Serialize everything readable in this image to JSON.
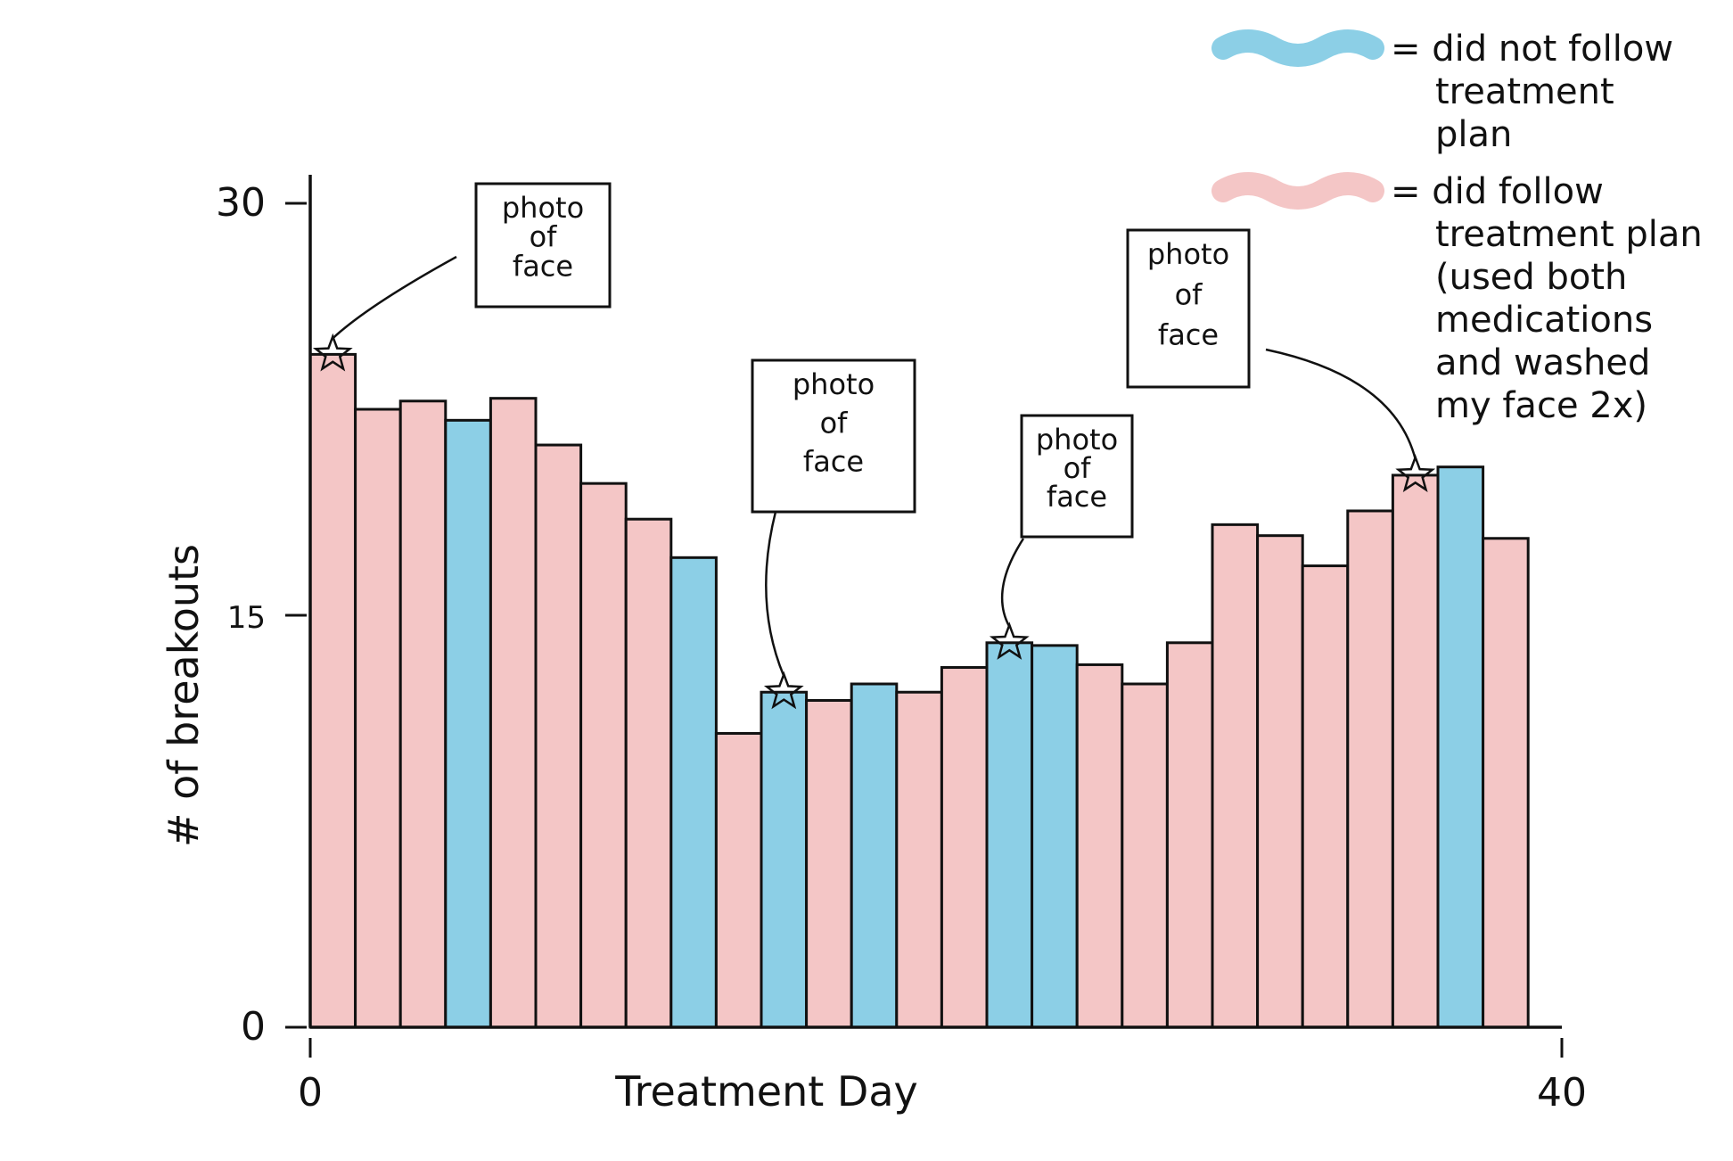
{
  "chart_data": {
    "type": "bar",
    "xlabel": "Treatment Day",
    "ylabel": "# of breakouts",
    "ylim": [
      0,
      30
    ],
    "xlim": [
      0,
      40
    ],
    "y_ticks": [
      "0",
      "15",
      "30"
    ],
    "x_ticks": [
      "0",
      "40"
    ],
    "grid": false,
    "legend_placement": "top-right",
    "colors": {
      "followed": "#f4c6c6",
      "not_followed": "#8ccfe6",
      "outline": "#111111"
    },
    "legend": [
      {
        "key": "not_followed",
        "lines": [
          "= did not follow",
          "treatment",
          "plan"
        ]
      },
      {
        "key": "followed",
        "lines": [
          "= did follow",
          "treatment plan",
          "(used both",
          "medications",
          "and washed",
          "my face 2x)"
        ]
      }
    ],
    "bars": [
      {
        "day": 0,
        "value": 24.5,
        "status": "followed"
      },
      {
        "day": 1,
        "value": 22.5,
        "status": "followed"
      },
      {
        "day": 2,
        "value": 22.8,
        "status": "followed"
      },
      {
        "day": 3,
        "value": 22.1,
        "status": "not_followed"
      },
      {
        "day": 4,
        "value": 22.9,
        "status": "followed"
      },
      {
        "day": 5,
        "value": 21.2,
        "status": "followed"
      },
      {
        "day": 6,
        "value": 19.8,
        "status": "followed"
      },
      {
        "day": 7,
        "value": 18.5,
        "status": "followed"
      },
      {
        "day": 8,
        "value": 17.1,
        "status": "not_followed"
      },
      {
        "day": 9,
        "value": 10.7,
        "status": "followed"
      },
      {
        "day": 10,
        "value": 12.2,
        "status": "not_followed"
      },
      {
        "day": 11,
        "value": 11.9,
        "status": "followed"
      },
      {
        "day": 12,
        "value": 12.5,
        "status": "not_followed"
      },
      {
        "day": 13,
        "value": 12.2,
        "status": "followed"
      },
      {
        "day": 14,
        "value": 13.1,
        "status": "followed"
      },
      {
        "day": 15,
        "value": 14.0,
        "status": "not_followed"
      },
      {
        "day": 16,
        "value": 13.9,
        "status": "not_followed"
      },
      {
        "day": 17,
        "value": 13.2,
        "status": "followed"
      },
      {
        "day": 18,
        "value": 12.5,
        "status": "followed"
      },
      {
        "day": 19,
        "value": 14.0,
        "status": "followed"
      },
      {
        "day": 20,
        "value": 18.3,
        "status": "followed"
      },
      {
        "day": 21,
        "value": 17.9,
        "status": "followed"
      },
      {
        "day": 22,
        "value": 16.8,
        "status": "followed"
      },
      {
        "day": 23,
        "value": 18.8,
        "status": "followed"
      },
      {
        "day": 24,
        "value": 20.1,
        "status": "followed"
      },
      {
        "day": 25,
        "value": 20.4,
        "status": "not_followed"
      },
      {
        "day": 26,
        "value": 17.8,
        "status": "followed"
      }
    ],
    "annotations": [
      {
        "day": 0,
        "value": 24.5,
        "lines": [
          "photo",
          "of",
          "face"
        ]
      },
      {
        "day": 10,
        "value": 12.2,
        "lines": [
          "photo",
          "of",
          "face"
        ]
      },
      {
        "day": 15,
        "value": 14.0,
        "lines": [
          "photo",
          "of",
          "face"
        ]
      },
      {
        "day": 24,
        "value": 20.1,
        "lines": [
          "photo",
          "of",
          "face"
        ]
      }
    ]
  }
}
